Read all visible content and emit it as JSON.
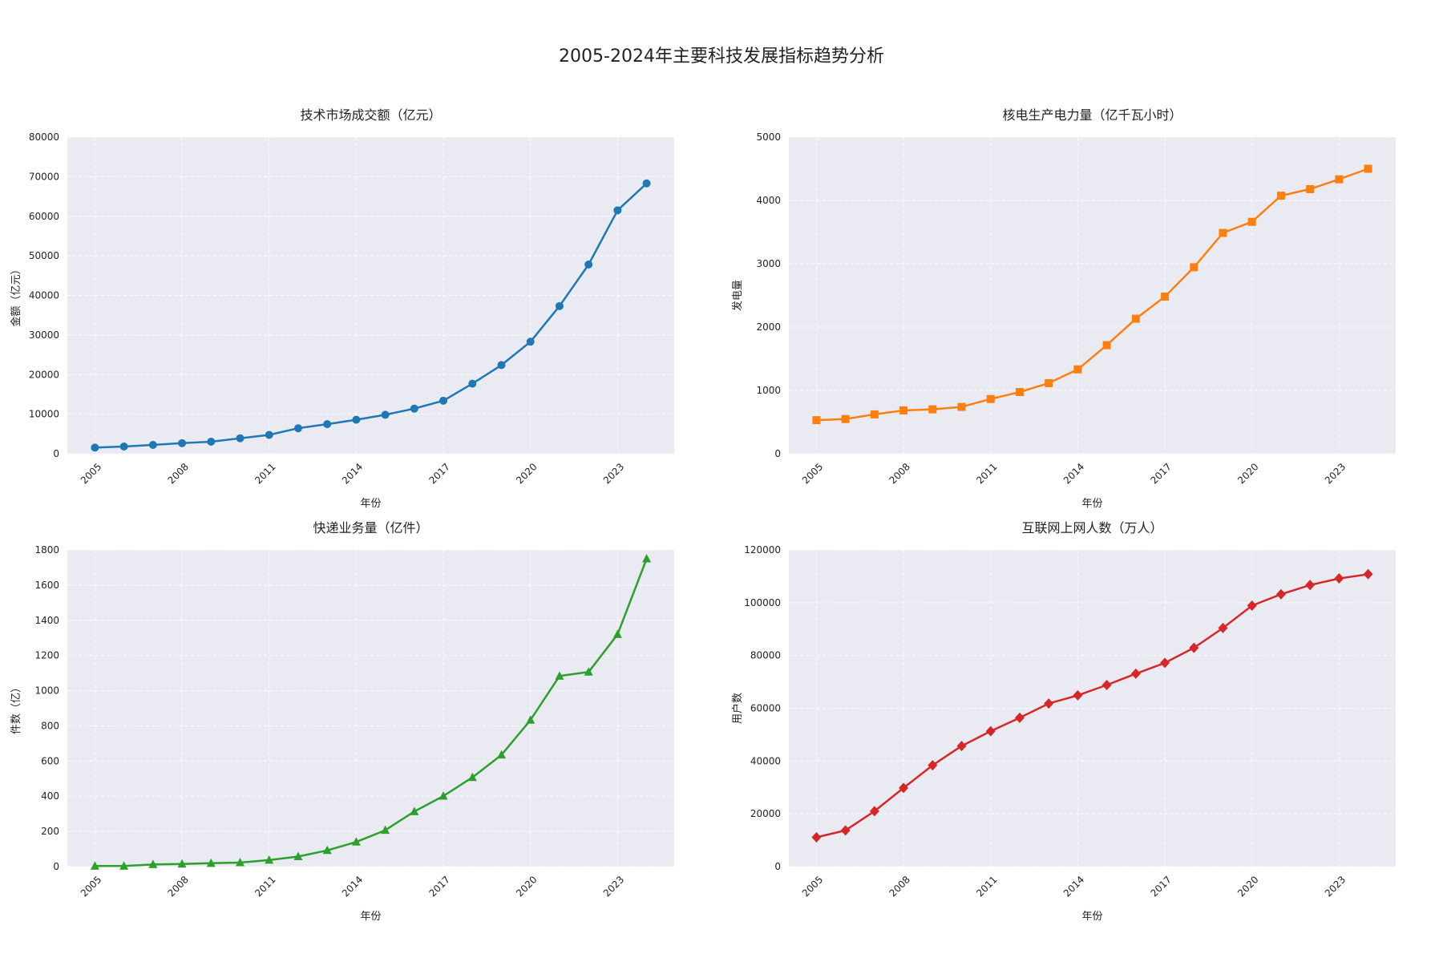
{
  "title": "2005-2024年主要科技发展指标趋势分析",
  "chart_data": [
    {
      "type": "line",
      "title": "技术市场成交额（亿元）",
      "xlabel": "年份",
      "ylabel": "金额（亿元）",
      "x": [
        2005,
        2006,
        2007,
        2008,
        2009,
        2010,
        2011,
        2012,
        2013,
        2014,
        2015,
        2016,
        2017,
        2018,
        2019,
        2020,
        2021,
        2022,
        2023,
        2024
      ],
      "values": [
        1550,
        1820,
        2230,
        2670,
        3040,
        3910,
        4760,
        6440,
        7470,
        8580,
        9840,
        11400,
        13400,
        17700,
        22400,
        28300,
        37300,
        47800,
        61500,
        68300
      ],
      "ylim": [
        0,
        80000
      ],
      "yticks": [
        0,
        10000,
        20000,
        30000,
        40000,
        50000,
        60000,
        70000,
        80000
      ],
      "xticks": [
        2005,
        2008,
        2011,
        2014,
        2017,
        2020,
        2023
      ],
      "marker": "circle",
      "color": "#1f77b4",
      "grid": true
    },
    {
      "type": "line",
      "title": "核电生产电力量（亿千瓦小时）",
      "xlabel": "年份",
      "ylabel": "发电量",
      "x": [
        2005,
        2006,
        2007,
        2008,
        2009,
        2010,
        2011,
        2012,
        2013,
        2014,
        2015,
        2016,
        2017,
        2018,
        2019,
        2020,
        2021,
        2022,
        2023,
        2024
      ],
      "values": [
        530,
        548,
        621,
        684,
        701,
        739,
        864,
        974,
        1115,
        1332,
        1714,
        2132,
        2481,
        2944,
        3487,
        3662,
        4075,
        4178,
        4334,
        4500
      ],
      "ylim": [
        0,
        5000
      ],
      "yticks": [
        0,
        1000,
        2000,
        3000,
        4000,
        5000
      ],
      "xticks": [
        2005,
        2008,
        2011,
        2014,
        2017,
        2020,
        2023
      ],
      "marker": "square",
      "color": "#ff7f0e",
      "grid": true
    },
    {
      "type": "line",
      "title": "快递业务量（亿件）",
      "xlabel": "年份",
      "ylabel": "件数（亿）",
      "x": [
        2005,
        2006,
        2007,
        2008,
        2009,
        2010,
        2011,
        2012,
        2013,
        2014,
        2015,
        2016,
        2017,
        2018,
        2019,
        2020,
        2021,
        2022,
        2023,
        2024
      ],
      "values": [
        3,
        3,
        12,
        15,
        19,
        23,
        37,
        57,
        92,
        140,
        207,
        313,
        401,
        507,
        635,
        833,
        1083,
        1106,
        1320,
        1750
      ],
      "ylim": [
        0,
        1800
      ],
      "yticks": [
        0,
        200,
        400,
        600,
        800,
        1000,
        1200,
        1400,
        1600,
        1800
      ],
      "xticks": [
        2005,
        2008,
        2011,
        2014,
        2017,
        2020,
        2023
      ],
      "marker": "triangle",
      "color": "#2ca02c",
      "grid": true
    },
    {
      "type": "line",
      "title": "互联网上网人数（万人）",
      "xlabel": "年份",
      "ylabel": "用户数",
      "x": [
        2005,
        2006,
        2007,
        2008,
        2009,
        2010,
        2011,
        2012,
        2013,
        2014,
        2015,
        2016,
        2017,
        2018,
        2019,
        2020,
        2021,
        2022,
        2023,
        2024
      ],
      "values": [
        11100,
        13700,
        21000,
        29800,
        38400,
        45700,
        51300,
        56400,
        61800,
        64900,
        68800,
        73100,
        77200,
        82900,
        90400,
        98900,
        103200,
        106700,
        109200,
        110800
      ],
      "ylim": [
        0,
        120000
      ],
      "yticks": [
        0,
        20000,
        40000,
        60000,
        80000,
        100000,
        120000
      ],
      "xticks": [
        2005,
        2008,
        2011,
        2014,
        2017,
        2020,
        2023
      ],
      "marker": "diamond",
      "color": "#d62728",
      "grid": true
    }
  ]
}
